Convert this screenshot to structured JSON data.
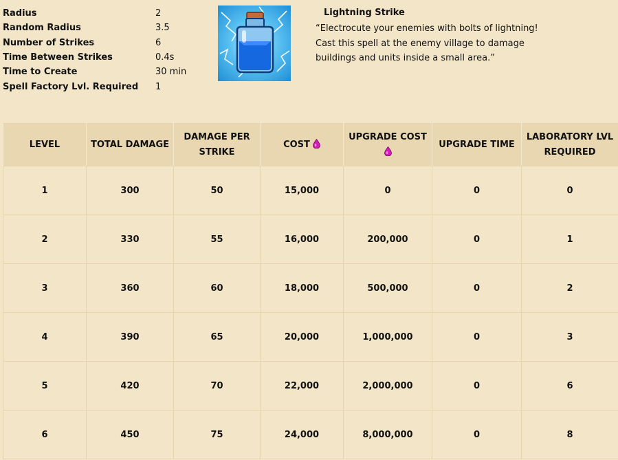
{
  "stats": [
    {
      "label": "Radius",
      "value": "2"
    },
    {
      "label": "Random Radius",
      "value": "3.5"
    },
    {
      "label": "Number of Strikes",
      "value": "6"
    },
    {
      "label": "Time Between Strikes",
      "value": "0.4s"
    },
    {
      "label": "Time to Create",
      "value": "30 min"
    },
    {
      "label": "Spell Factory Lvl. Required",
      "value": "1"
    }
  ],
  "spell": {
    "name": "Lightning Strike",
    "description": "“Electrocute your enemies with bolts of lightning! Cast this spell at  the enemy village to damage buildings and units inside a small  area.”",
    "icon": "lightning-potion-icon"
  },
  "table": {
    "headers": [
      "LEVEL",
      "TOTAL DAMAGE",
      "DAMAGE PER STRIKE",
      "COST",
      "UPGRADE COST",
      "UPGRADE TIME",
      "LABORATORY LVL REQUIRED"
    ],
    "cost_icon": "elixir-drop-icon",
    "rows": [
      [
        "1",
        "300",
        "50",
        "15,000",
        "0",
        "0",
        "0"
      ],
      [
        "2",
        "330",
        "55",
        "16,000",
        "200,000",
        "0",
        "1"
      ],
      [
        "3",
        "360",
        "60",
        "18,000",
        "500,000",
        "0",
        "2"
      ],
      [
        "4",
        "390",
        "65",
        "20,000",
        "1,000,000",
        "0",
        "3"
      ],
      [
        "5",
        "420",
        "70",
        "22,000",
        "2,000,000",
        "0",
        "6"
      ],
      [
        "6",
        "450",
        "75",
        "24,000",
        "8,000,000",
        "0",
        "8"
      ]
    ]
  },
  "colors": {
    "background": "#f3e6c8",
    "header": "#e9d7b2",
    "elixir": "#d21fb8"
  }
}
